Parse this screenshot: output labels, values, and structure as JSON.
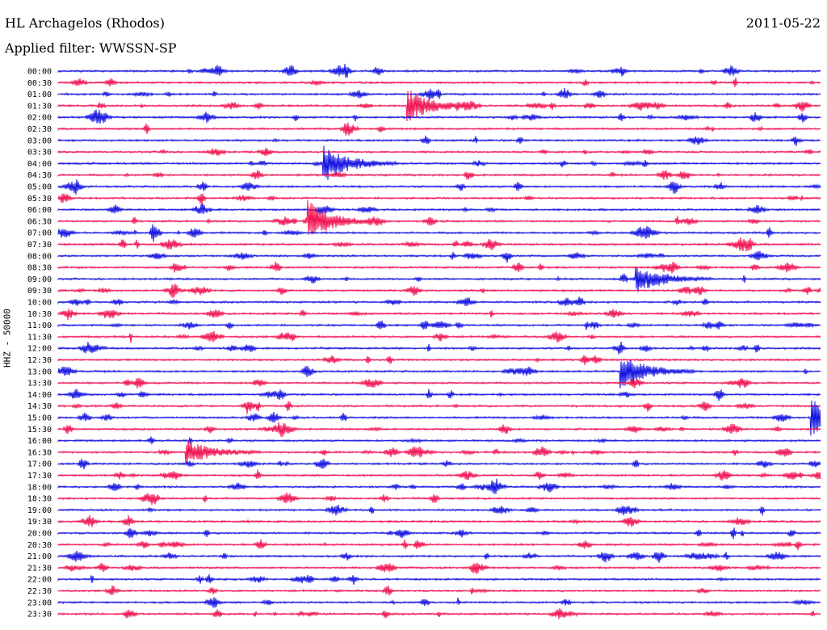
{
  "header": {
    "station": "HL Archagelos (Rhodos)",
    "filter": "Applied filter: WWSSN-SP",
    "date": "2011-05-22"
  },
  "chart_data": {
    "type": "line",
    "title": "HL Archagelos (Rhodos)",
    "subtitle": "Applied filter: WWSSN-SP",
    "ylabel": "HHZ - 50000",
    "xlabel": "",
    "row_labels": [
      "00:00",
      "00:30",
      "01:00",
      "01:30",
      "02:00",
      "02:30",
      "03:00",
      "03:30",
      "04:00",
      "04:30",
      "05:00",
      "05:30",
      "06:00",
      "06:30",
      "07:00",
      "07:30",
      "08:00",
      "08:30",
      "09:00",
      "09:30",
      "10:00",
      "10:30",
      "11:00",
      "11:30",
      "12:00",
      "12:30",
      "13:00",
      "13:30",
      "14:00",
      "14:30",
      "15:00",
      "15:30",
      "16:00",
      "16:30",
      "17:00",
      "17:30",
      "18:00",
      "18:30",
      "19:00",
      "19:30",
      "20:00",
      "20:30",
      "21:00",
      "21:30",
      "22:00",
      "22:30",
      "23:00",
      "23:30"
    ],
    "trace_colors": [
      "#1010e0",
      "#f01050"
    ],
    "major_events": [
      {
        "row": "01:30",
        "x_frac": 0.46,
        "amp": 0.9
      },
      {
        "row": "04:00",
        "x_frac": 0.35,
        "amp": 1.0
      },
      {
        "row": "06:30",
        "x_frac": 0.33,
        "amp": 1.0
      },
      {
        "row": "09:00",
        "x_frac": 0.76,
        "amp": 0.8
      },
      {
        "row": "13:00",
        "x_frac": 0.74,
        "amp": 1.0
      },
      {
        "row": "15:00",
        "x_frac": 0.99,
        "amp": 1.0
      },
      {
        "row": "16:30",
        "x_frac": 0.17,
        "amp": 0.7
      }
    ]
  }
}
